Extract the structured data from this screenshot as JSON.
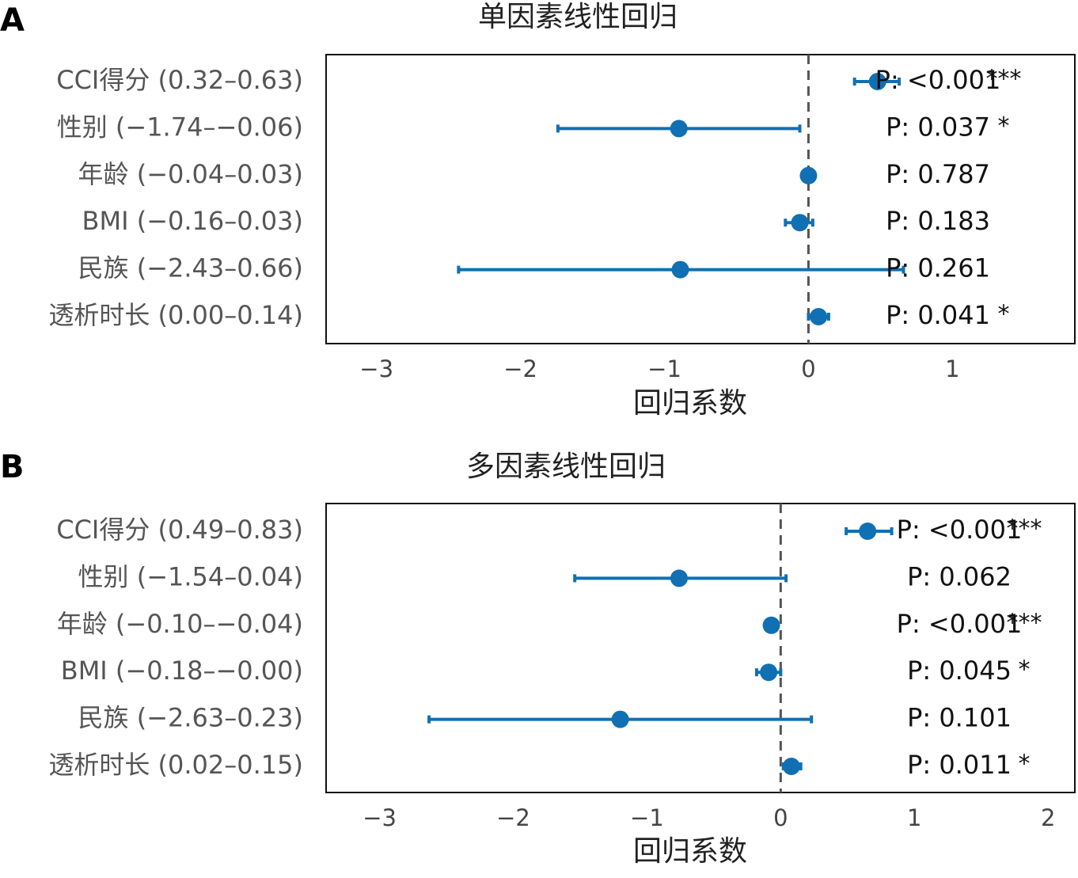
{
  "chart_data": [
    {
      "type": "forest",
      "panel_label": "A",
      "title": "单因素线性回归",
      "xlabel": "回归系数",
      "xlim": [
        -3.35,
        1.85
      ],
      "xticks": [
        -3,
        -2,
        -1,
        0,
        1
      ],
      "xtick_labels": [
        "−3",
        "−2",
        "−1",
        "0",
        "1"
      ],
      "reference_line": 0,
      "grid": false,
      "point_color": "#1070b3",
      "rows": [
        {
          "label": "CCI得分 (0.32–0.63)",
          "estimate": 0.48,
          "ci": [
            0.32,
            0.63
          ],
          "p_label": "P: <0.001",
          "stars": "***"
        },
        {
          "label": "性别 (−1.74–−0.06)",
          "estimate": -0.9,
          "ci": [
            -1.74,
            -0.06
          ],
          "p_label": "P: 0.037",
          "stars": "*"
        },
        {
          "label": "年龄 (−0.04–0.03)",
          "estimate": 0.0,
          "ci": [
            -0.04,
            0.03
          ],
          "p_label": "P: 0.787",
          "stars": ""
        },
        {
          "label": "BMI (−0.16–0.03)",
          "estimate": -0.06,
          "ci": [
            -0.16,
            0.03
          ],
          "p_label": "P: 0.183",
          "stars": ""
        },
        {
          "label": "民族 (−2.43–0.66)",
          "estimate": -0.89,
          "ci": [
            -2.43,
            0.66
          ],
          "p_label": "P: 0.261",
          "stars": ""
        },
        {
          "label": "透析时长 (0.00–0.14)",
          "estimate": 0.07,
          "ci": [
            0.0,
            0.14
          ],
          "p_label": "P: 0.041",
          "stars": "*"
        }
      ]
    },
    {
      "type": "forest",
      "panel_label": "B",
      "title": "多因素线性回归",
      "xlabel": "回归系数",
      "xlim": [
        -3.4,
        2.2
      ],
      "xticks": [
        -3,
        -2,
        -1,
        0,
        1,
        2
      ],
      "xtick_labels": [
        "−3",
        "−2",
        "−1",
        "0",
        "1",
        "2"
      ],
      "reference_line": 0,
      "grid": false,
      "point_color": "#1070b3",
      "rows": [
        {
          "label": "CCI得分 (0.49–0.83)",
          "estimate": 0.65,
          "ci": [
            0.49,
            0.83
          ],
          "p_label": "P: <0.001",
          "stars": "***"
        },
        {
          "label": "性别 (−1.54–0.04)",
          "estimate": -0.76,
          "ci": [
            -1.54,
            0.04
          ],
          "p_label": "P: 0.062",
          "stars": ""
        },
        {
          "label": "年龄 (−0.10–−0.04)",
          "estimate": -0.07,
          "ci": [
            -0.1,
            -0.04
          ],
          "p_label": "P: <0.001",
          "stars": "***"
        },
        {
          "label": "BMI (−0.18–−0.00)",
          "estimate": -0.09,
          "ci": [
            -0.18,
            0.0
          ],
          "p_label": "P: 0.045",
          "stars": "*"
        },
        {
          "label": "民族 (−2.63–0.23)",
          "estimate": -1.2,
          "ci": [
            -2.63,
            0.23
          ],
          "p_label": "P: 0.101",
          "stars": ""
        },
        {
          "label": "透析时长 (0.02–0.15)",
          "estimate": 0.08,
          "ci": [
            0.02,
            0.15
          ],
          "p_label": "P: 0.011",
          "stars": "*"
        }
      ]
    }
  ]
}
